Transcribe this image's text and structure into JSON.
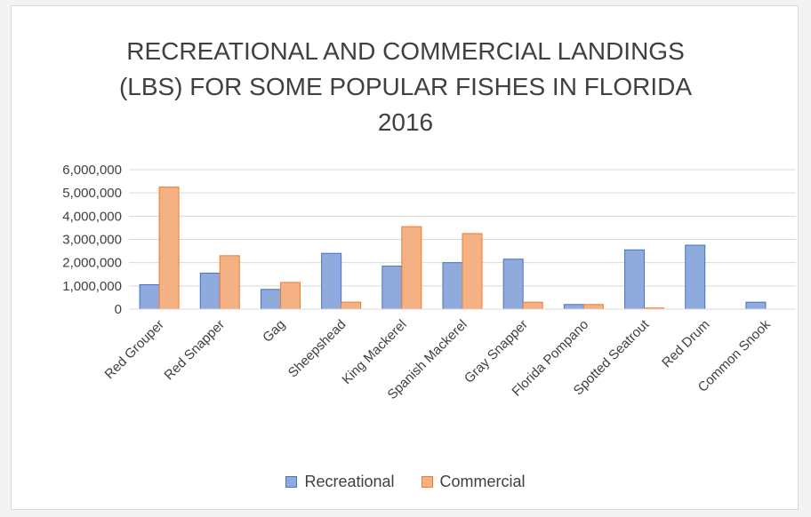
{
  "chart_data": {
    "type": "bar",
    "title_lines": [
      "RECREATIONAL AND COMMERCIAL LANDINGS",
      "(LBS) FOR SOME POPULAR FISHES IN FLORIDA",
      "2016"
    ],
    "categories": [
      "Red Grouper",
      "Red Snapper",
      "Gag",
      "Sheepshead",
      "King Mackerel",
      "Spanish Mackerel",
      "Gray Snapper",
      "Florida Pompano",
      "Spotted Seatrout",
      "Red Drum",
      "Common Snook"
    ],
    "series": [
      {
        "name": "Recreational",
        "color": "#8faadc",
        "stroke": "#4472c4",
        "values": [
          1050000,
          1550000,
          850000,
          2400000,
          1850000,
          2000000,
          2150000,
          200000,
          2550000,
          2750000,
          300000
        ]
      },
      {
        "name": "Commercial",
        "color": "#f4b183",
        "stroke": "#ed7d31",
        "values": [
          5250000,
          2300000,
          1150000,
          300000,
          3550000,
          3250000,
          300000,
          200000,
          50000,
          0,
          0
        ]
      }
    ],
    "yticks": [
      "0",
      "1,000,000",
      "2,000,000",
      "3,000,000",
      "4,000,000",
      "5,000,000",
      "6,000,000"
    ],
    "ylim": [
      0,
      6000000
    ],
    "grid": true,
    "legend_position": "bottom"
  }
}
